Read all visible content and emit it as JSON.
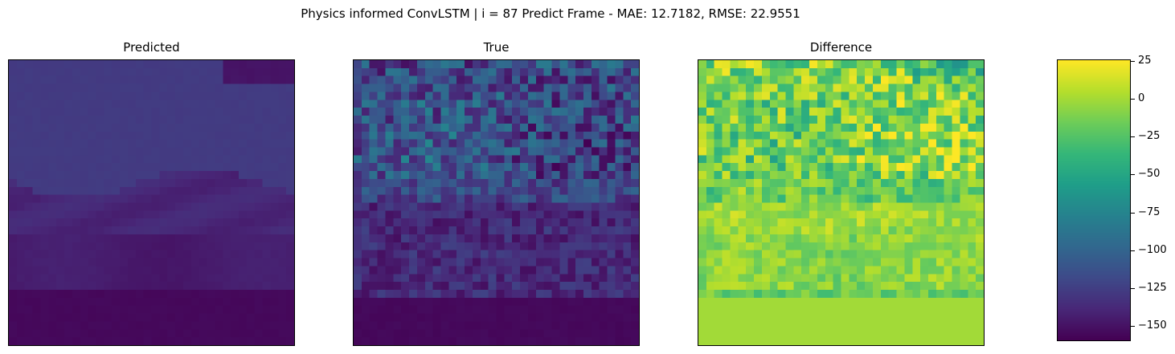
{
  "figure": {
    "suptitle": "Physics informed ConvLSTM | i = 87 Predict Frame - MAE: 12.7182, RMSE: 22.9551"
  },
  "chart_data": [
    {
      "type": "heatmap",
      "title": "Predicted",
      "colormap": "viridis",
      "grid": false,
      "axes_ticks": false,
      "vmin": -160,
      "vmax": 26
    },
    {
      "type": "heatmap",
      "title": "True",
      "colormap": "viridis",
      "grid": false,
      "axes_ticks": false,
      "vmin": -160,
      "vmax": 26
    },
    {
      "type": "heatmap",
      "title": "Difference",
      "colormap": "viridis",
      "grid": false,
      "axes_ticks": false,
      "vmin": -160,
      "vmax": 26
    }
  ],
  "colorbar": {
    "colormap": "viridis",
    "range": [
      -160,
      26
    ],
    "ticks": [
      25,
      0,
      -25,
      -50,
      -75,
      -100,
      -125,
      -150
    ],
    "tick_labels": [
      "25",
      "0",
      "−25",
      "−50",
      "−75",
      "−100",
      "−125",
      "−150"
    ]
  }
}
